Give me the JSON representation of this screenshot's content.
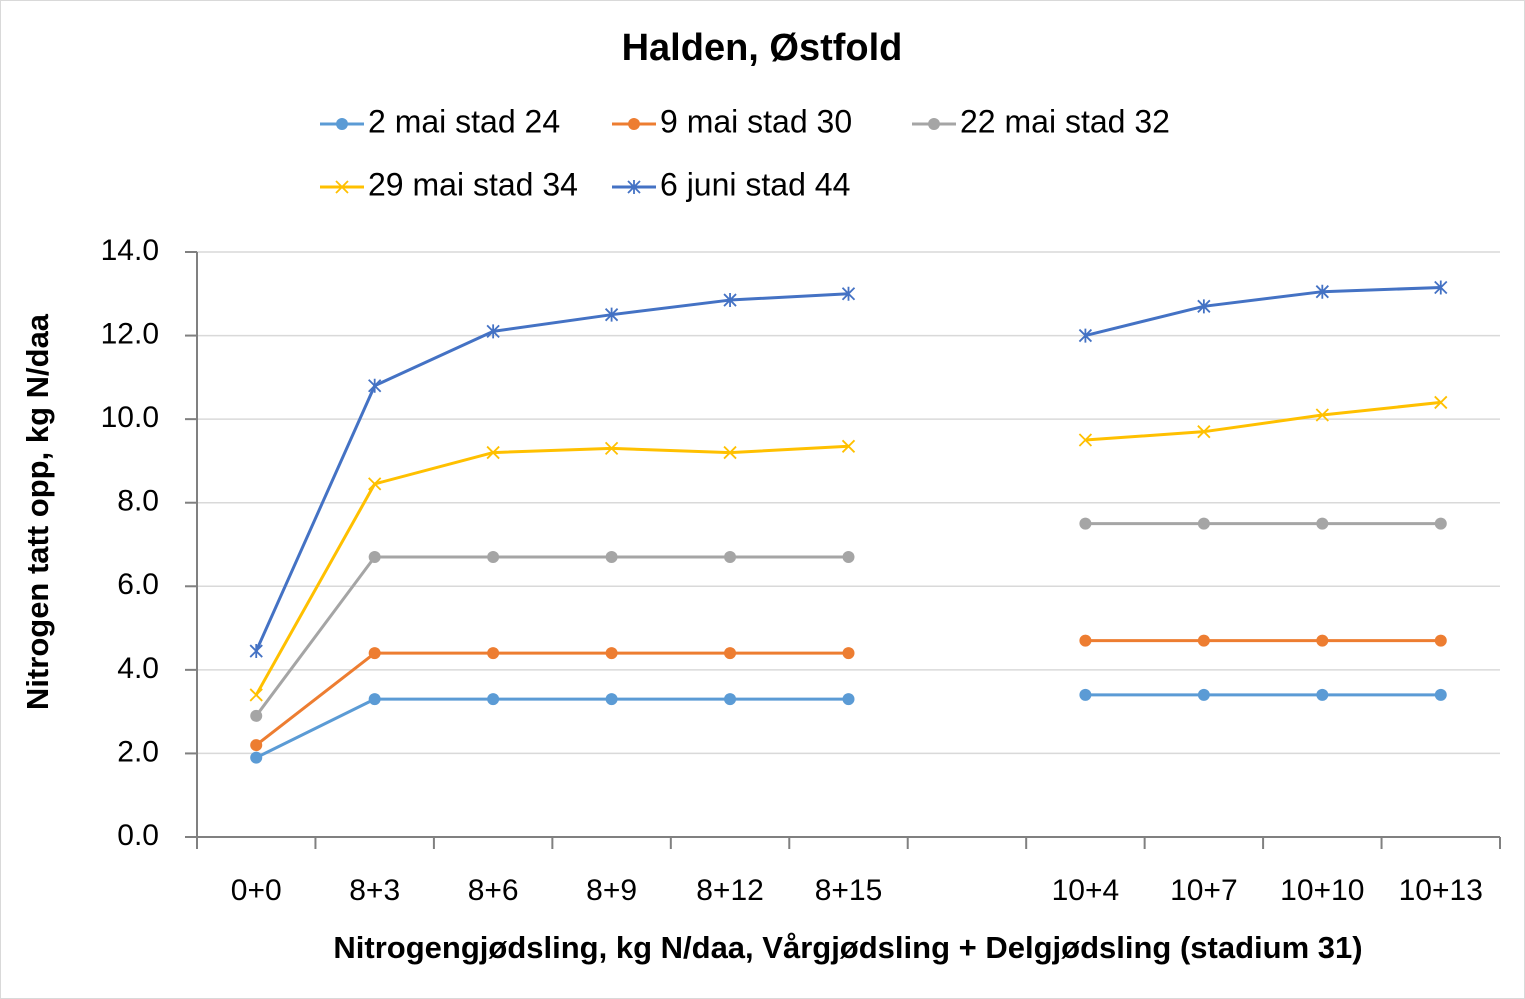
{
  "chart_data": {
    "type": "line",
    "title": "Halden, Østfold",
    "x_label": "Nitrogengjødsling, kg N/daa, Vårgjødsling + Delgjødsling (stadium 31)",
    "y_label": "Nitrogen tatt opp, kg N/daa",
    "categories": [
      "0+0",
      "8+3",
      "8+6",
      "8+9",
      "8+12",
      "8+15",
      null,
      "10+4",
      "10+7",
      "10+10",
      "10+13"
    ],
    "ylim": [
      0,
      14
    ],
    "yticks": [
      {
        "value": 0,
        "label": "0.0"
      },
      {
        "value": 2,
        "label": "2.0"
      },
      {
        "value": 4,
        "label": "4.0"
      },
      {
        "value": 6,
        "label": "6.0"
      },
      {
        "value": 8,
        "label": "8.0"
      },
      {
        "value": 10,
        "label": "10.0"
      },
      {
        "value": 12,
        "label": "12.0"
      },
      {
        "value": 14,
        "label": "14.0"
      }
    ],
    "grid": true,
    "series": [
      {
        "name": "2 mai stad 24",
        "color": "#5b9bd5",
        "marker": "circle",
        "values": [
          1.9,
          3.3,
          3.3,
          3.3,
          3.3,
          3.3,
          null,
          3.4,
          3.4,
          3.4,
          3.4
        ]
      },
      {
        "name": "9 mai stad 30",
        "color": "#ed7d31",
        "marker": "circle",
        "values": [
          2.2,
          4.4,
          4.4,
          4.4,
          4.4,
          4.4,
          null,
          4.7,
          4.7,
          4.7,
          4.7
        ]
      },
      {
        "name": "22 mai stad 32",
        "color": "#a5a5a5",
        "marker": "circle",
        "values": [
          2.9,
          6.7,
          6.7,
          6.7,
          6.7,
          6.7,
          null,
          7.5,
          7.5,
          7.5,
          7.5
        ]
      },
      {
        "name": "29 mai stad 34",
        "color": "#ffc000",
        "marker": "x",
        "values": [
          3.4,
          8.45,
          9.2,
          9.3,
          9.2,
          9.35,
          null,
          9.5,
          9.7,
          10.1,
          10.4
        ]
      },
      {
        "name": "6 juni stad 44",
        "color": "#4472c4",
        "marker": "star",
        "values": [
          4.45,
          10.8,
          12.1,
          12.5,
          12.85,
          13.0,
          null,
          12.0,
          12.7,
          13.05,
          13.15
        ]
      }
    ]
  }
}
